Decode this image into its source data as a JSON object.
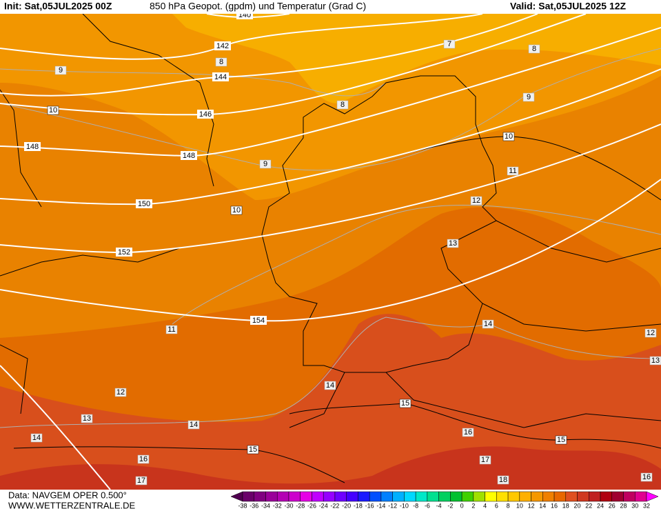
{
  "header": {
    "init": "Init: Sat,05JUL2025 00Z",
    "title": "850 hPa Geopot. (gpdm) und Temperatur (Grad C)",
    "valid": "Valid: Sat,05JUL2025 12Z"
  },
  "footer": {
    "source": "Data: NAVGEM OPER 0.500°",
    "website": "WWW.WETTERZENTRALE.DE"
  },
  "geopotential_labels": [
    140,
    142,
    144,
    146,
    148,
    148,
    150,
    152,
    154
  ],
  "temperature_labels": [
    9,
    10,
    8,
    7,
    8,
    9,
    8,
    9,
    10,
    11,
    12,
    10,
    13,
    11,
    14,
    12,
    13,
    12,
    14,
    15,
    13,
    14,
    14,
    16,
    15,
    15,
    16,
    17,
    17,
    18,
    16
  ],
  "legend": {
    "labels": [
      -38,
      -36,
      -34,
      -32,
      -30,
      -28,
      -26,
      -24,
      -22,
      -20,
      -18,
      -16,
      -14,
      -12,
      -10,
      -8,
      -6,
      -4,
      -2,
      0,
      2,
      4,
      6,
      8,
      10,
      12,
      14,
      16,
      18,
      20,
      22,
      24,
      26,
      28,
      30,
      32
    ],
    "colors": [
      "#500050",
      "#6a006a",
      "#800080",
      "#9a009a",
      "#b400b4",
      "#cc00cc",
      "#e600e6",
      "#c000ff",
      "#9600ff",
      "#6e00ff",
      "#4400ff",
      "#1a1aff",
      "#0050ff",
      "#0080ff",
      "#00b0ff",
      "#00d8ff",
      "#00e8c8",
      "#00e090",
      "#00d060",
      "#00c030",
      "#40d000",
      "#a0e000",
      "#ffff00",
      "#ffe000",
      "#ffc800",
      "#ffb000",
      "#f59800",
      "#f08000",
      "#e86800",
      "#e05020",
      "#d03820",
      "#c02020",
      "#b00010",
      "#a00030",
      "#c00060",
      "#e00090",
      "#ff00ff"
    ]
  }
}
